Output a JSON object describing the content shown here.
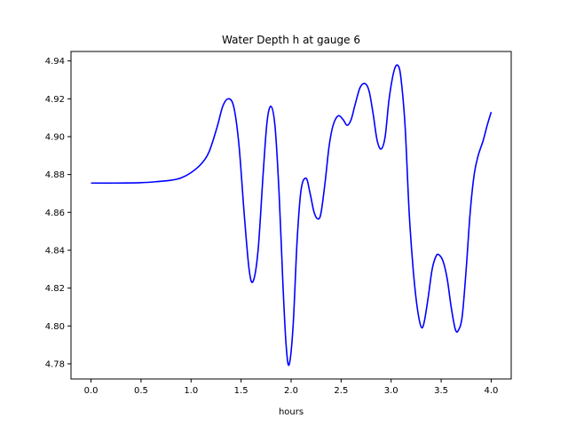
{
  "chart_data": {
    "type": "line",
    "title": "Water Depth h at gauge 6",
    "xlabel": "hours",
    "ylabel": "",
    "xlim": [
      -0.2,
      4.2
    ],
    "ylim": [
      4.772,
      4.945
    ],
    "x_ticks": [
      0.0,
      0.5,
      1.0,
      1.5,
      2.0,
      2.5,
      3.0,
      3.5,
      4.0
    ],
    "x_tick_labels": [
      "0.0",
      "0.5",
      "1.0",
      "1.5",
      "2.0",
      "2.5",
      "3.0",
      "3.5",
      "4.0"
    ],
    "y_ticks": [
      4.78,
      4.8,
      4.82,
      4.84,
      4.86,
      4.88,
      4.9,
      4.92,
      4.94
    ],
    "y_tick_labels": [
      "4.78",
      "4.80",
      "4.82",
      "4.84",
      "4.86",
      "4.88",
      "4.90",
      "4.92",
      "4.94"
    ],
    "grid": false,
    "series": [
      {
        "color": "#0000ff",
        "x": [
          0.0,
          0.25,
          0.5,
          0.65,
          0.8,
          0.9,
          1.0,
          1.1,
          1.18,
          1.26,
          1.32,
          1.38,
          1.43,
          1.48,
          1.53,
          1.58,
          1.62,
          1.67,
          1.72,
          1.76,
          1.8,
          1.84,
          1.88,
          1.92,
          1.95,
          1.98,
          2.02,
          2.06,
          2.1,
          2.15,
          2.19,
          2.23,
          2.27,
          2.3,
          2.34,
          2.38,
          2.42,
          2.47,
          2.52,
          2.56,
          2.6,
          2.64,
          2.69,
          2.74,
          2.78,
          2.82,
          2.86,
          2.9,
          2.94,
          2.98,
          3.03,
          3.07,
          3.1,
          3.14,
          3.18,
          3.22,
          3.26,
          3.3,
          3.33,
          3.37,
          3.41,
          3.45,
          3.48,
          3.52,
          3.56,
          3.6,
          3.64,
          3.67,
          3.71,
          3.75,
          3.79,
          3.83,
          3.87,
          3.92,
          3.96,
          4.0
        ],
        "y": [
          4.8755,
          4.8755,
          4.8757,
          4.8762,
          4.877,
          4.8782,
          4.881,
          4.8855,
          4.892,
          4.905,
          4.9165,
          4.92,
          4.915,
          4.895,
          4.86,
          4.83,
          4.8235,
          4.84,
          4.88,
          4.908,
          4.916,
          4.905,
          4.87,
          4.82,
          4.79,
          4.7795,
          4.8,
          4.845,
          4.872,
          4.878,
          4.87,
          4.86,
          4.8565,
          4.86,
          4.876,
          4.895,
          4.906,
          4.911,
          4.909,
          4.906,
          4.909,
          4.917,
          4.926,
          4.928,
          4.924,
          4.912,
          4.898,
          4.8935,
          4.9,
          4.92,
          4.935,
          4.9375,
          4.93,
          4.905,
          4.86,
          4.83,
          4.81,
          4.7995,
          4.802,
          4.815,
          4.83,
          4.837,
          4.8375,
          4.834,
          4.825,
          4.81,
          4.7985,
          4.7975,
          4.805,
          4.83,
          4.86,
          4.88,
          4.89,
          4.898,
          4.906,
          4.913
        ]
      }
    ]
  }
}
